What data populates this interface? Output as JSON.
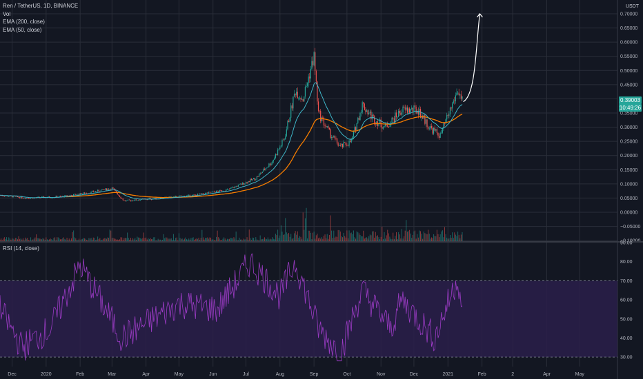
{
  "legend": {
    "symbol": "Ren / TetherUS, 1D, BINANCE",
    "vol": "Vol",
    "ema200": "EMA (200, close)",
    "ema50": "EMA (50, close)",
    "rsi": "RSI (14, close)"
  },
  "price_axis": {
    "unit": "USDT",
    "ticks": [
      "0.70000",
      "0.65000",
      "0.60000",
      "0.55000",
      "0.50000",
      "0.45000",
      "0.40000",
      "0.35000",
      "0.30000",
      "0.25000",
      "0.20000",
      "0.15000",
      "0.10000",
      "0.05000",
      "0.00000",
      "−0.05000",
      "−0.10000"
    ],
    "last_price": "0.39003",
    "countdown": "10:49:26"
  },
  "rsi_axis": {
    "ticks": [
      "90.00",
      "80.00",
      "70.00",
      "60.00",
      "50.00",
      "40.00",
      "30.00"
    ]
  },
  "time_axis": {
    "labels": [
      "Dec",
      "2020",
      "Feb",
      "Mar",
      "Apr",
      "May",
      "Jun",
      "Jul",
      "Aug",
      "Sep",
      "Oct",
      "Nov",
      "Dec",
      "2021",
      "Feb",
      "2",
      "Apr",
      "May"
    ]
  },
  "colors": {
    "background": "#131722",
    "grid": "#2a2e39",
    "up": "#26a69a",
    "down": "#ef5350",
    "ema50": "#3fb6c8",
    "ema200": "#f57c00",
    "rsi": "#9b3bc4",
    "rsi_band": "#2a1f4a",
    "arrow": "#ffffff"
  },
  "chart_data": {
    "type": "candlestick",
    "title": "Ren / TetherUS, 1D, BINANCE",
    "price_range": [
      -0.1,
      0.72
    ],
    "rsi_range": [
      25,
      90
    ],
    "rsi_levels": [
      70,
      30
    ],
    "price_anchors": [
      {
        "date": "2019-11-20",
        "price": 0.06
      },
      {
        "date": "2019-12-15",
        "price": 0.05
      },
      {
        "date": "2020-01-15",
        "price": 0.055
      },
      {
        "date": "2020-02-10",
        "price": 0.07
      },
      {
        "date": "2020-03-01",
        "price": 0.085
      },
      {
        "date": "2020-03-12",
        "price": 0.04
      },
      {
        "date": "2020-04-15",
        "price": 0.05
      },
      {
        "date": "2020-05-15",
        "price": 0.06
      },
      {
        "date": "2020-06-15",
        "price": 0.08
      },
      {
        "date": "2020-07-10",
        "price": 0.12
      },
      {
        "date": "2020-07-25",
        "price": 0.18
      },
      {
        "date": "2020-08-05",
        "price": 0.26
      },
      {
        "date": "2020-08-15",
        "price": 0.43
      },
      {
        "date": "2020-08-22",
        "price": 0.4
      },
      {
        "date": "2020-09-01",
        "price": 0.55
      },
      {
        "date": "2020-09-05",
        "price": 0.35
      },
      {
        "date": "2020-09-15",
        "price": 0.28
      },
      {
        "date": "2020-09-25",
        "price": 0.23
      },
      {
        "date": "2020-10-05",
        "price": 0.25
      },
      {
        "date": "2020-10-15",
        "price": 0.38
      },
      {
        "date": "2020-10-25",
        "price": 0.33
      },
      {
        "date": "2020-11-05",
        "price": 0.3
      },
      {
        "date": "2020-11-20",
        "price": 0.36
      },
      {
        "date": "2020-12-05",
        "price": 0.36
      },
      {
        "date": "2020-12-15",
        "price": 0.3
      },
      {
        "date": "2020-12-25",
        "price": 0.27
      },
      {
        "date": "2021-01-05",
        "price": 0.38
      },
      {
        "date": "2021-01-10",
        "price": 0.43
      },
      {
        "date": "2021-01-14",
        "price": 0.39
      }
    ],
    "rsi_anchors": [
      {
        "date": "2019-11-20",
        "value": 55
      },
      {
        "date": "2019-12-10",
        "value": 35
      },
      {
        "date": "2020-01-05",
        "value": 45
      },
      {
        "date": "2020-02-01",
        "value": 78
      },
      {
        "date": "2020-03-10",
        "value": 40
      },
      {
        "date": "2020-05-01",
        "value": 58
      },
      {
        "date": "2020-06-05",
        "value": 55
      },
      {
        "date": "2020-07-05",
        "value": 80
      },
      {
        "date": "2020-08-01",
        "value": 62
      },
      {
        "date": "2020-08-15",
        "value": 80
      },
      {
        "date": "2020-09-05",
        "value": 45
      },
      {
        "date": "2020-09-25",
        "value": 32
      },
      {
        "date": "2020-10-15",
        "value": 65
      },
      {
        "date": "2020-11-10",
        "value": 45
      },
      {
        "date": "2020-11-20",
        "value": 60
      },
      {
        "date": "2020-12-20",
        "value": 40
      },
      {
        "date": "2021-01-10",
        "value": 72
      },
      {
        "date": "2021-01-14",
        "value": 55
      }
    ],
    "projection_arrow": {
      "from": {
        "date": "2021-01-15",
        "price": 0.39
      },
      "to": {
        "date": "2021-01-30",
        "price": 0.7
      }
    }
  }
}
